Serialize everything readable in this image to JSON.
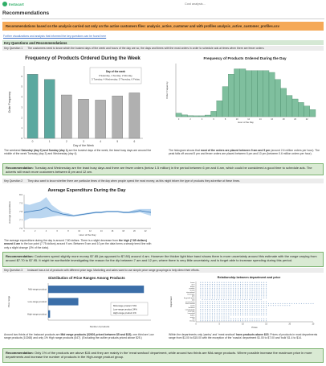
{
  "app": {
    "name": "Instacart",
    "filename": "Cost analysis..."
  },
  "page_title": "Recommendations",
  "banner": "Recommendations based on the analysis carried out only on the active customers files: analysis_active_customer and with profiles analysis_active_customer_profiles.csv",
  "link_text": "Further visualizations and analysis that informed the key questions can be found here",
  "section_header": "Key Questions and Recommendations",
  "kq1": {
    "label": "Key Question 1",
    "text": "The customers need to know which the busiest days of the week and hours of the day are so, the days and times with the most orders in order to schedule ads at times when there are fewer orders."
  },
  "kq2": {
    "label": "Key Question 2",
    "text": "They also want to know whether there are particular times of the day when people spend the most money, as this might inform the type of products they advertise at these times."
  },
  "kq3": {
    "label": "Key Question 3",
    "text": "Instacart has a lot of products with different price tags. Marketing and sales want to use simple price range groupings to help direct their efforts."
  },
  "text1": {
    "bold": "Saturday (day 0) and Sunday (day 1)",
    "prefix": "The weekend ",
    "suffix": " are the busiest days of the week, the least busy days are around the middle of the week Tuesday (day 3) and Wednesday (day 4)."
  },
  "text2": {
    "prefix": "The histogram shows that ",
    "bold": "most of the orders are placed between 9 am and 5 pm",
    "suffix": " (around 2.6 million orders per hour). The peak falls off around 5 pm and fewer orders are placed between 6 pm and 10 pm (between 0.6 million orders per hour)."
  },
  "rec1": {
    "label": "Recommendation:",
    "text": " Tuesday and Wednesday are the least busy days and there are fewer orders (below 1.5 million) in the period between 6 pm and 6 am, which could be considered a good time to schedule ads. The adverts will reach more customers between 8 pm and 12 am."
  },
  "text3": {
    "prefix": "The average expenditure during the day is around 7.80 dollars. There is a slight decrease from ",
    "bold": "the high (7.85 dollars) around 4 am",
    "suffix": " to the low point (7.75 dollars) around 9 am. Between 9 am and 10 pm the data forms a steady trend line with only a slight change (3% of the data)."
  },
  "rec2": {
    "label": "Recommendation:",
    "text": " Customers spend slightly more money $7.85 (as opposed to $7.80) around 4 am. However the thicker light blue band shows there is more uncertainty around this estimate with the range varying from around $7.70 to $7.95. It might be worthwhile investigating the reason for the dip between 7 am and 12 pm, where there is very little uncertainty, and is forget able to increase spending during this period."
  },
  "text4": {
    "prefix": "Around two thirds of the Instacart products are ",
    "bold": "Mid range products (32601 priced between $5 and $15)",
    "suffix": ", one third are Low range products (10268) and only 1% High range products (647). (Excluding the outlier products priced above $25.)"
  },
  "text5": {
    "prefix": "Within the departments only 'pantry' and 'meat seafood' ",
    "bold": "have products above $15",
    "suffix": ". Prices of products in most departments range from $1.00 to $15.00 with the exception of the 'snacks' department $1.00 to $7.00 and 'bulk' $1.4 to $14."
  },
  "rec3": {
    "label": "Recommendation:",
    "text": " Only 1% of the products are above $15 and they are mainly in the 'meat seafood' department, while around two thirds are Mid-range products. Where possible increase the maximum price in more departments and increase the number of products in the High-range product group."
  },
  "colors": {
    "accent": "#2fae67",
    "banner": "#f5a957",
    "rec_bg": "#d9ead3",
    "bar_highlight": "#5ba89f",
    "bar_default": "#b0b0b0",
    "hist": "#7fbf9e",
    "line": "#3878b8",
    "hbar": "#3b6ea8"
  },
  "chart_data": [
    {
      "type": "bar",
      "title": "Frequency of Products Ordered During the Week",
      "xlabel": "Day of the Week",
      "ylabel": "Order Frequency",
      "categories": [
        "0",
        "1",
        "2",
        "3",
        "4",
        "5",
        "6"
      ],
      "values": [
        6.2,
        5.7,
        4.2,
        3.8,
        3.7,
        4.1,
        4.4
      ],
      "highlight": [
        0,
        1
      ],
      "ylim": [
        0,
        7
      ],
      "y_ticks": [
        "0",
        "1",
        "2",
        "3",
        "4",
        "5",
        "6"
      ],
      "legend_title": "Day of the week",
      "legend_lines": [
        "0 Saturday, 1 Sunday, 2 Monday,",
        "3 Tuesday, 4 Wednesday, 5 Thursday, 6 Friday"
      ]
    },
    {
      "type": "bar",
      "title": "Frequency of Products Ordered During the Day",
      "xlabel": "Hour of the Day",
      "ylabel": "Order Frequency",
      "categories": [
        "0",
        "1",
        "2",
        "3",
        "4",
        "5",
        "6",
        "7",
        "8",
        "9",
        "10",
        "11",
        "12",
        "13",
        "14",
        "15",
        "16",
        "17",
        "18",
        "19",
        "20",
        "21",
        "22",
        "23"
      ],
      "values": [
        0.2,
        0.1,
        0.06,
        0.05,
        0.05,
        0.09,
        0.3,
        0.9,
        1.7,
        2.4,
        2.7,
        2.7,
        2.6,
        2.6,
        2.6,
        2.6,
        2.5,
        2.1,
        1.6,
        1.2,
        1.0,
        0.8,
        0.6,
        0.4
      ],
      "ylim": [
        0,
        3
      ]
    },
    {
      "type": "line",
      "title": "Average Expenditure During the Day",
      "xlabel": "Hour of the Day",
      "ylabel": "Average expenditure",
      "x": [
        0,
        1,
        2,
        3,
        4,
        5,
        6,
        7,
        8,
        9,
        10,
        11,
        12,
        13,
        14,
        15,
        16,
        17,
        18,
        19,
        20,
        21,
        22,
        23
      ],
      "y": [
        7.79,
        7.8,
        7.81,
        7.82,
        7.85,
        7.81,
        7.79,
        7.77,
        7.76,
        7.75,
        7.76,
        7.77,
        7.78,
        7.79,
        7.79,
        7.8,
        7.8,
        7.8,
        7.79,
        7.79,
        7.8,
        7.81,
        7.8,
        7.79
      ],
      "band": [
        0.1,
        0.08,
        0.09,
        0.1,
        0.12,
        0.07,
        0.04,
        0.02,
        0.02,
        0.01,
        0.01,
        0.01,
        0.01,
        0.01,
        0.01,
        0.01,
        0.01,
        0.01,
        0.01,
        0.01,
        0.02,
        0.02,
        0.03,
        0.04
      ],
      "ylim": [
        7.6,
        8.0
      ],
      "y_ticks": [
        "7.6",
        "7.7",
        "7.8",
        "7.9",
        "8.0"
      ]
    },
    {
      "type": "bar",
      "orientation": "horizontal",
      "title": "Distribution of Price Ranges Among Products",
      "xlabel": "Number of products",
      "ylabel": "Price range",
      "categories": [
        "Mid-range product",
        "Low-range product",
        "High-range product"
      ],
      "values": [
        32601,
        10268,
        647
      ],
      "xlim": [
        0,
        35000
      ],
      "legend_lines": [
        "Mid-range product   74%",
        "Low-range product   24%",
        "High-range product   1%"
      ]
    },
    {
      "type": "scatter",
      "title": "Relationship between department and price",
      "xlabel": "Prices",
      "ylabel": "Department",
      "categories": [
        "frozen",
        "other",
        "bakery",
        "produce",
        "alcohol",
        "international",
        "beverages",
        "pets",
        "dry goods pasta",
        "bulk",
        "personal care",
        "meat seafood",
        "pantry",
        "breakfast",
        "canned goods",
        "dairy eggs",
        "household",
        "babies",
        "snacks",
        "deli",
        "missing"
      ],
      "ranges": [
        [
          1,
          15
        ],
        [
          1,
          15
        ],
        [
          1,
          15
        ],
        [
          1,
          15
        ],
        [
          1,
          15
        ],
        [
          1,
          15
        ],
        [
          1,
          15
        ],
        [
          1,
          15
        ],
        [
          1,
          15
        ],
        [
          1.4,
          14
        ],
        [
          1,
          15
        ],
        [
          1,
          25
        ],
        [
          1,
          20
        ],
        [
          1,
          15
        ],
        [
          1,
          15
        ],
        [
          1,
          15
        ],
        [
          1,
          15
        ],
        [
          1,
          15
        ],
        [
          1,
          7
        ],
        [
          1,
          15
        ],
        [
          1,
          15
        ]
      ],
      "xlim": [
        0,
        25
      ],
      "x_ticks": [
        "0",
        "5",
        "10",
        "15",
        "20",
        "25"
      ]
    }
  ]
}
